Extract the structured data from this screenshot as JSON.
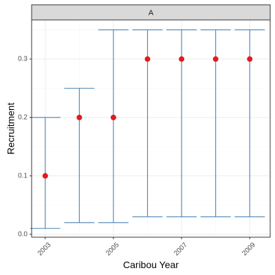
{
  "chart_data": {
    "type": "scatter",
    "facet_label": "A",
    "xlabel": "Caribou Year",
    "ylabel": "Recruitment",
    "x": [
      2003,
      2004,
      2005,
      2006,
      2007,
      2008,
      2009
    ],
    "series": [
      {
        "values": [
          0.1,
          0.2,
          0.2,
          0.3,
          0.3,
          0.3,
          0.3
        ],
        "lower": [
          0.01,
          0.02,
          0.02,
          0.03,
          0.03,
          0.03,
          0.03
        ],
        "upper": [
          0.2,
          0.25,
          0.35,
          0.35,
          0.35,
          0.35,
          0.35
        ],
        "point_color": "#e41a1c",
        "errorbar_color": "#4682b4"
      }
    ],
    "xlim": [
      2002.6,
      2009.6
    ],
    "ylim": [
      -0.005,
      0.367
    ],
    "x_ticks": [
      2003,
      2005,
      2007,
      2009
    ],
    "x_tick_labels": [
      "2003",
      "2005",
      "2007",
      "2009"
    ],
    "y_ticks": [
      0.0,
      0.1,
      0.2,
      0.3
    ],
    "y_tick_labels": [
      "0.0",
      "0.1",
      "0.2",
      "0.3"
    ],
    "grid": true,
    "strip_fill": "#d9d9d9",
    "grid_major_color": "#ebebeb",
    "grid_minor_color": "#f5f5f5"
  }
}
